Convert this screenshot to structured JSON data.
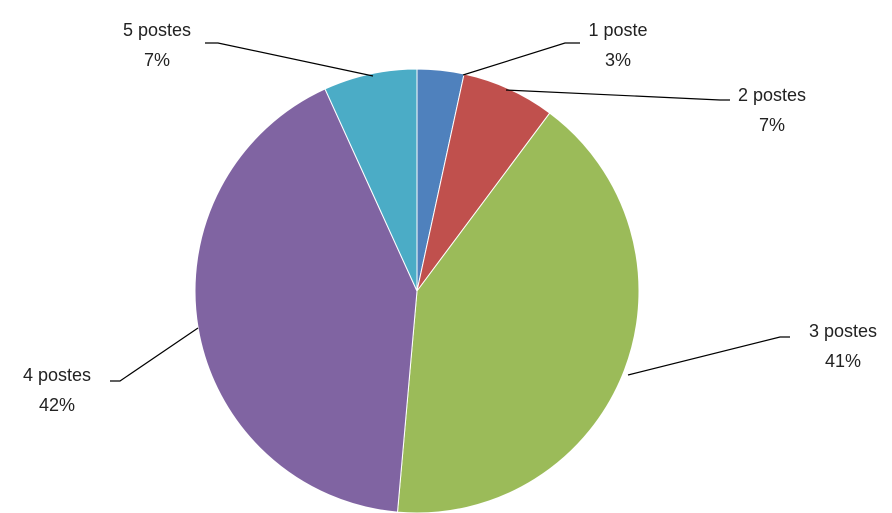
{
  "chart_data": {
    "type": "pie",
    "title": "",
    "start_angle_deg": 0,
    "direction": "clockwise",
    "slices": [
      {
        "label": "1 poste",
        "percent_label": "3%",
        "value": 3.4,
        "color": "#4F81BD"
      },
      {
        "label": "2 postes",
        "percent_label": "7%",
        "value": 6.8,
        "color": "#C0504D"
      },
      {
        "label": "3 postes",
        "percent_label": "41%",
        "value": 41.2,
        "color": "#9BBB59"
      },
      {
        "label": "4 postes",
        "percent_label": "42%",
        "value": 41.8,
        "color": "#8064A2"
      },
      {
        "label": "5 postes",
        "percent_label": "7%",
        "value": 6.8,
        "color": "#4BACC6"
      }
    ],
    "data_labels": "outside with leader lines",
    "legend": "none"
  }
}
